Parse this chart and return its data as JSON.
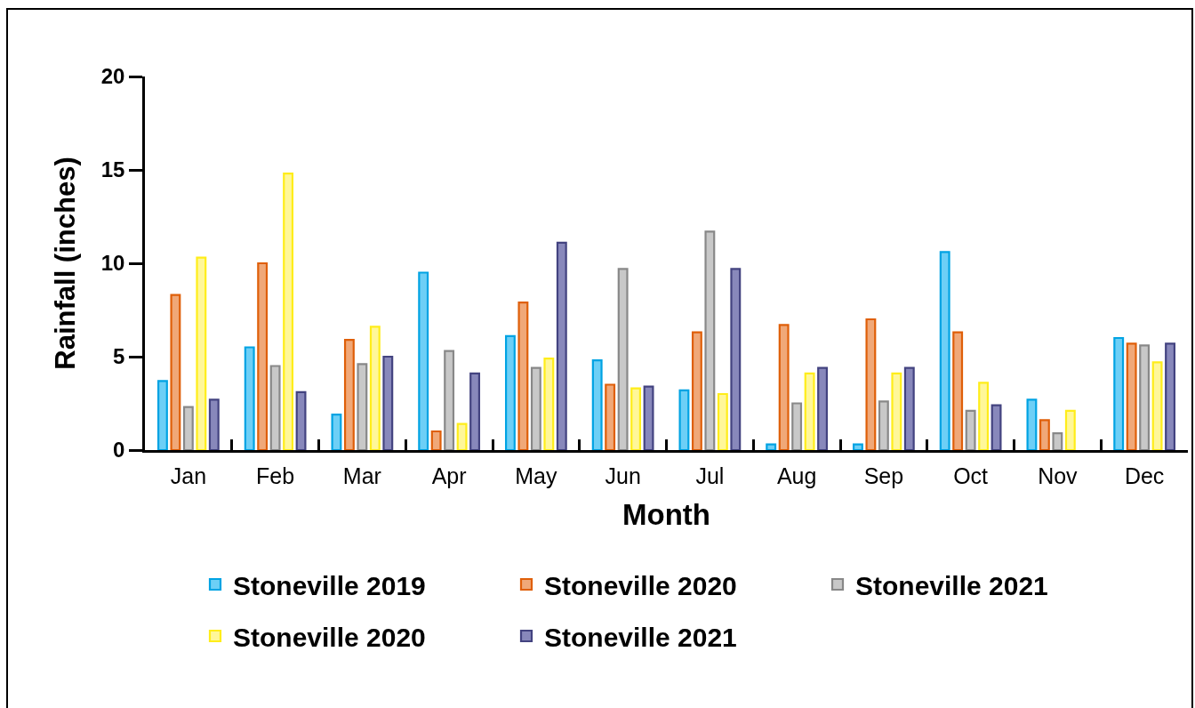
{
  "chart_data": {
    "type": "bar",
    "xlabel": "Month",
    "ylabel": "Rainfall (inches)",
    "categories": [
      "Jan",
      "Feb",
      "Mar",
      "Apr",
      "May",
      "Jun",
      "Jul",
      "Aug",
      "Sep",
      "Oct",
      "Nov",
      "Dec"
    ],
    "series": [
      {
        "name": "Stoneville 2019",
        "color": "#6dcff6",
        "values": [
          3.7,
          5.5,
          1.9,
          9.5,
          6.1,
          4.8,
          3.2,
          0.3,
          0.3,
          10.6,
          2.7,
          6.0
        ]
      },
      {
        "name": "Stoneville 2020",
        "color": "#f0a878",
        "values": [
          8.3,
          10.0,
          5.9,
          1.0,
          7.9,
          3.5,
          6.3,
          6.7,
          7.0,
          6.3,
          1.6,
          5.7
        ]
      },
      {
        "name": "Stoneville 2021",
        "color": "#c8c8c8",
        "values": [
          2.3,
          4.5,
          4.6,
          5.3,
          4.4,
          9.7,
          11.7,
          2.5,
          2.6,
          2.1,
          0.9,
          5.6
        ]
      },
      {
        "name": "Stoneville 2020",
        "color": "#fff799",
        "values": [
          10.3,
          14.8,
          6.6,
          1.4,
          4.9,
          3.3,
          3.0,
          4.1,
          4.1,
          3.6,
          2.1,
          4.7
        ]
      },
      {
        "name": "Stoneville 2021",
        "color": "#8888bb",
        "values": [
          2.7,
          3.1,
          5.0,
          4.1,
          11.1,
          3.4,
          9.7,
          4.4,
          4.4,
          2.4,
          null,
          5.7
        ]
      }
    ],
    "ylim": [
      0,
      20
    ],
    "yticks": [
      0,
      5,
      10,
      15,
      20
    ],
    "legend": "bottom"
  }
}
